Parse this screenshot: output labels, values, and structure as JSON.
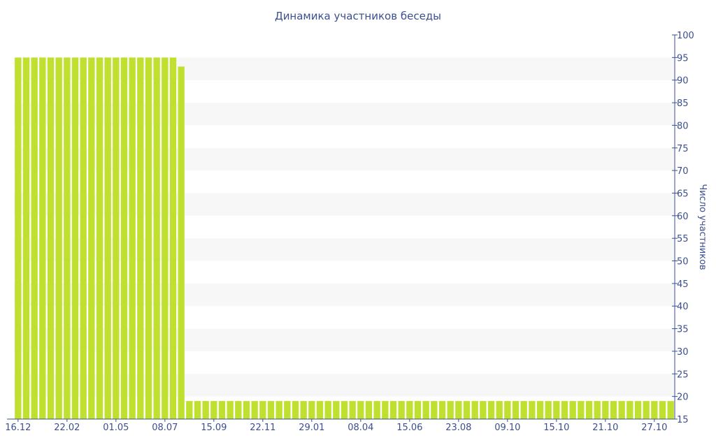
{
  "chart_data": {
    "type": "bar",
    "title": "Динамика участников беседы",
    "ylabel": "Число участников",
    "xlabel": "",
    "ylim": [
      15,
      100
    ],
    "y_axis_side": "right",
    "grid": "alternating horizontal bands",
    "legend": "none",
    "y_ticks": [
      "15",
      "20",
      "25",
      "30",
      "35",
      "40",
      "45",
      "50",
      "55",
      "60",
      "65",
      "70",
      "75",
      "80",
      "85",
      "90",
      "95",
      "100"
    ],
    "x_tick_labels": [
      {
        "index": 0,
        "label": "16.12"
      },
      {
        "index": 6,
        "label": "22.02"
      },
      {
        "index": 12,
        "label": "01.05"
      },
      {
        "index": 18,
        "label": "08.07"
      },
      {
        "index": 24,
        "label": "15.09"
      },
      {
        "index": 30,
        "label": "22.11"
      },
      {
        "index": 36,
        "label": "29.01"
      },
      {
        "index": 42,
        "label": "08.04"
      },
      {
        "index": 48,
        "label": "15.06"
      },
      {
        "index": 54,
        "label": "23.08"
      },
      {
        "index": 60,
        "label": "09.10"
      },
      {
        "index": 66,
        "label": "15.10"
      },
      {
        "index": 72,
        "label": "21.10"
      },
      {
        "index": 78,
        "label": "27.10"
      }
    ],
    "values": [
      95,
      95,
      95,
      95,
      95,
      95,
      95,
      95,
      95,
      95,
      95,
      95,
      95,
      95,
      95,
      95,
      95,
      95,
      95,
      95,
      93,
      19,
      19,
      19,
      19,
      19,
      19,
      19,
      19,
      19,
      19,
      19,
      19,
      19,
      19,
      19,
      19,
      19,
      19,
      19,
      19,
      19,
      19,
      19,
      19,
      19,
      19,
      19,
      19,
      19,
      19,
      19,
      19,
      19,
      19,
      19,
      19,
      19,
      19,
      19,
      19,
      19,
      19,
      19,
      19,
      19,
      19,
      19,
      19,
      19,
      19,
      19,
      19,
      19,
      19,
      19,
      19,
      19,
      19,
      19,
      19
    ],
    "colors": {
      "bar": "#c0e030",
      "band": "#f7f7f7",
      "axis": "#3a4f8f",
      "text": "#3a4f8f"
    }
  }
}
